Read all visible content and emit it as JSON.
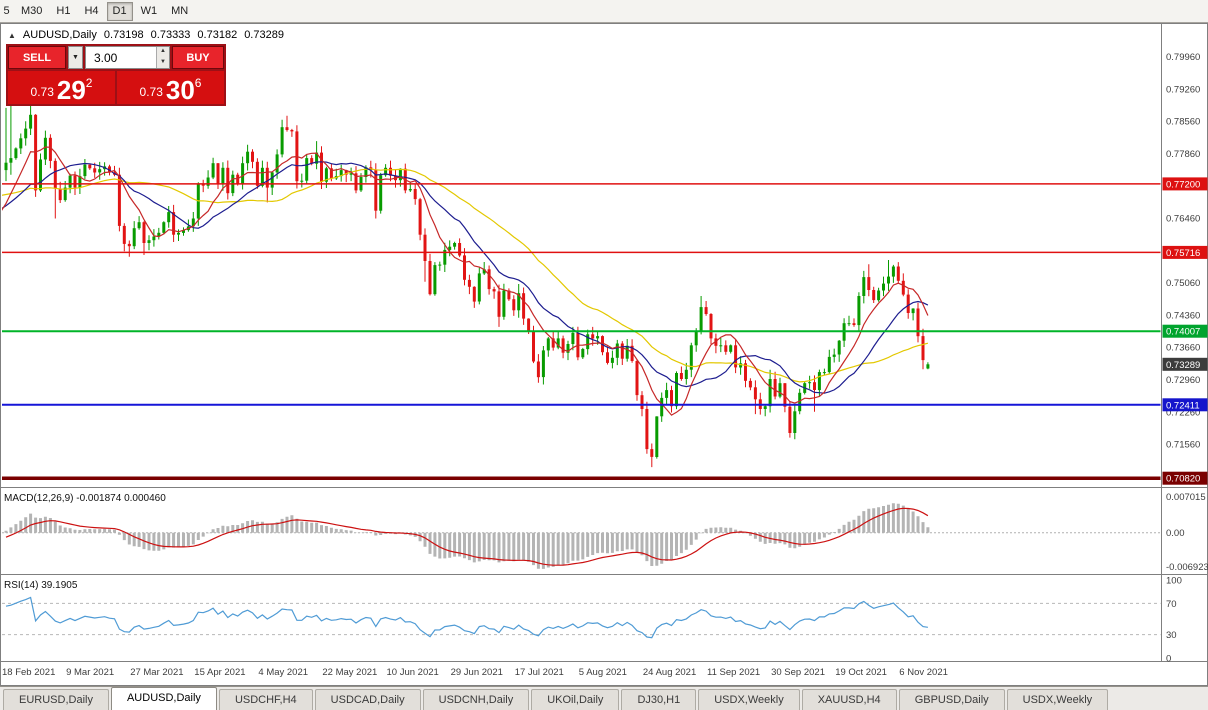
{
  "toolbar": {
    "timeframes": [
      "5",
      "M30",
      "H1",
      "H4",
      "D1",
      "W1",
      "MN"
    ],
    "active_timeframe": "D1"
  },
  "symbol_header": {
    "icon": "▲",
    "symbol": "AUDUSD,Daily",
    "open": "0.73198",
    "high": "0.73333",
    "low": "0.73182",
    "close": "0.73289"
  },
  "trade_panel": {
    "sell_label": "SELL",
    "buy_label": "BUY",
    "volume": "3.00",
    "sell_price": {
      "base": "0.73",
      "pips": "29",
      "point": "2"
    },
    "buy_price": {
      "base": "0.73",
      "pips": "30",
      "point": "6"
    }
  },
  "chart_data": {
    "type": "candlestick",
    "symbol": "AUDUSD",
    "timeframe": "Daily",
    "x_labels": [
      "18 Feb 2021",
      "9 Mar 2021",
      "27 Mar 2021",
      "15 Apr 2021",
      "4 May 2021",
      "22 May 2021",
      "10 Jun 2021",
      "29 Jun 2021",
      "17 Jul 2021",
      "5 Aug 2021",
      "24 Aug 2021",
      "11 Sep 2021",
      "30 Sep 2021",
      "19 Oct 2021",
      "6 Nov 2021"
    ],
    "x_label_days": [
      0,
      13,
      26,
      39,
      52,
      65,
      78,
      91,
      104,
      117,
      130,
      143,
      156,
      169,
      182
    ],
    "warmup": [
      0.77,
      0.7712,
      0.7718,
      0.7725,
      0.7735,
      0.7745,
      0.775,
      0.7758,
      0.777,
      0.7762,
      0.7748,
      0.7735,
      0.772,
      0.7705,
      0.769,
      0.768,
      0.7665,
      0.7645,
      0.7638,
      0.765,
      0.7662,
      0.7675,
      0.7688,
      0.77,
      0.7712,
      0.766,
      0.763,
      0.7605,
      0.7622,
      0.764,
      0.766,
      0.768,
      0.771,
      0.774
    ],
    "closes": [
      0.7766,
      0.7776,
      0.7797,
      0.7819,
      0.784,
      0.787,
      0.7706,
      0.7773,
      0.782,
      0.777,
      0.771,
      0.7685,
      0.7712,
      0.7738,
      0.7712,
      0.7737,
      0.7762,
      0.7754,
      0.7745,
      0.7752,
      0.7758,
      0.7745,
      0.774,
      0.7629,
      0.759,
      0.7585,
      0.7624,
      0.7637,
      0.7592,
      0.7598,
      0.7606,
      0.7614,
      0.7637,
      0.7659,
      0.761,
      0.7614,
      0.762,
      0.7628,
      0.7645,
      0.772,
      0.7716,
      0.7734,
      0.7765,
      0.7721,
      0.7755,
      0.77,
      0.774,
      0.772,
      0.7765,
      0.779,
      0.7768,
      0.7716,
      0.7755,
      0.7712,
      0.7745,
      0.7784,
      0.7843,
      0.7837,
      0.7834,
      0.7726,
      0.7727,
      0.7776,
      0.7764,
      0.7788,
      0.7725,
      0.7754,
      0.7732,
      0.7737,
      0.775,
      0.774,
      0.7743,
      0.7706,
      0.7735,
      0.7756,
      0.775,
      0.7662,
      0.7739,
      0.7755,
      0.7738,
      0.7728,
      0.7753,
      0.7706,
      0.7709,
      0.7687,
      0.761,
      0.7553,
      0.7481,
      0.7544,
      0.7545,
      0.7577,
      0.7584,
      0.7592,
      0.7565,
      0.7512,
      0.7497,
      0.7465,
      0.7526,
      0.7535,
      0.7492,
      0.7487,
      0.7432,
      0.7489,
      0.747,
      0.7446,
      0.7483,
      0.7428,
      0.7401,
      0.7335,
      0.7301,
      0.7359,
      0.7385,
      0.7365,
      0.7385,
      0.7354,
      0.7373,
      0.7397,
      0.7344,
      0.7362,
      0.7394,
      0.7385,
      0.739,
      0.7355,
      0.7332,
      0.7343,
      0.7374,
      0.7341,
      0.7369,
      0.7336,
      0.7262,
      0.7232,
      0.7145,
      0.7128,
      0.7216,
      0.7256,
      0.7273,
      0.7238,
      0.731,
      0.7297,
      0.7317,
      0.737,
      0.74,
      0.7453,
      0.7438,
      0.7385,
      0.7369,
      0.737,
      0.7356,
      0.737,
      0.7322,
      0.7331,
      0.7293,
      0.7279,
      0.7253,
      0.7232,
      0.7238,
      0.7297,
      0.7259,
      0.7288,
      0.7237,
      0.718,
      0.7227,
      0.7267,
      0.7288,
      0.729,
      0.7273,
      0.7312,
      0.7312,
      0.7345,
      0.735,
      0.738,
      0.7418,
      0.7418,
      0.7414,
      0.7477,
      0.7518,
      0.749,
      0.7468,
      0.7489,
      0.7504,
      0.7519,
      0.7541,
      0.751,
      0.748,
      0.744,
      0.745,
      0.739,
      0.7338,
      0.73289
    ],
    "overrides": {
      "0": {
        "o": 0.775,
        "h": 0.7885
      },
      "1": {
        "h": 0.7892,
        "l": 0.774
      },
      "5": {
        "h": 0.789
      },
      "6": {
        "l": 0.7692
      },
      "10": {
        "l": 0.7645
      },
      "25": {
        "l": 0.7562
      },
      "28": {
        "l": 0.7566
      },
      "53": {
        "l": 0.768
      },
      "57": {
        "h": 0.7868
      },
      "63": {
        "h": 0.7813
      },
      "75": {
        "l": 0.7645
      },
      "84": {
        "l": 0.7598
      },
      "85": {
        "l": 0.7508
      },
      "86": {
        "l": 0.7478
      },
      "100": {
        "l": 0.741
      },
      "104": {
        "h": 0.7503
      },
      "108": {
        "l": 0.7289
      },
      "115": {
        "h": 0.741
      },
      "130": {
        "l": 0.7135
      },
      "131": {
        "l": 0.7106
      },
      "141": {
        "h": 0.7477
      },
      "152": {
        "l": 0.7221
      },
      "155": {
        "h": 0.7317
      },
      "159": {
        "l": 0.717
      },
      "164": {
        "l": 0.7226
      },
      "173": {
        "h": 0.7485
      },
      "175": {
        "h": 0.7546
      },
      "179": {
        "h": 0.7555
      },
      "186": {
        "l": 0.7318
      },
      "187": {
        "o": 0.73198,
        "h": 0.73333,
        "l": 0.73182
      }
    },
    "y_axis": {
      "min": 0.7065,
      "max": 0.8056,
      "labels": [
        "0.79960",
        "0.79260",
        "0.78560",
        "0.77860",
        "0.76460",
        "0.75060",
        "0.74360",
        "0.73660",
        "0.72960",
        "0.72260",
        "0.71560"
      ],
      "badges": [
        {
          "price": 0.772,
          "label": "0.77200",
          "color": "#dd1111"
        },
        {
          "price": 0.75716,
          "label": "0.75716",
          "color": "#dd1111"
        },
        {
          "price": 0.74007,
          "label": "0.74007",
          "color": "#00a42e"
        },
        {
          "price": 0.73289,
          "label": "0.73289",
          "color": "#3c3c3c"
        },
        {
          "price": 0.72411,
          "label": "0.72411",
          "color": "#1515cc"
        },
        {
          "price": 0.7082,
          "label": "0.70820",
          "color": "#7a0000"
        }
      ]
    },
    "hlines": [
      {
        "price": 0.772,
        "label": "0.77200",
        "color": "#e01010",
        "width": 1.5
      },
      {
        "price": 0.75716,
        "label": "0.75716",
        "color": "#e01010",
        "width": 1.5
      },
      {
        "price": 0.74007,
        "label": "0.74007",
        "color": "#00b428",
        "width": 2
      },
      {
        "price": 0.72411,
        "label": "0.72411",
        "color": "#1515d8",
        "width": 2
      },
      {
        "price": 0.7082,
        "label": "0.70820",
        "color": "#7a0000",
        "width": 3.5
      }
    ],
    "macd": {
      "label": "MACD(12,26,9)",
      "value": "-0.001874",
      "signal_value": "0.000460",
      "fast": 12,
      "slow": 26,
      "signal": 9,
      "axis": [
        "0.007015",
        "0.00",
        "-0.006923"
      ]
    },
    "rsi": {
      "label": "RSI(14)",
      "value": "39.1905",
      "period": 14,
      "levels": [
        70,
        30
      ],
      "axis": [
        "100",
        "70",
        "30",
        "0"
      ]
    }
  },
  "tabs": {
    "items": [
      {
        "label": "EURUSD,Daily",
        "active": false
      },
      {
        "label": "AUDUSD,Daily",
        "active": true
      },
      {
        "label": "USDCHF,H4",
        "active": false
      },
      {
        "label": "USDCAD,Daily",
        "active": false
      },
      {
        "label": "USDCNH,Daily",
        "active": false
      },
      {
        "label": "UKOil,Daily",
        "active": false
      },
      {
        "label": "DJ30,H1",
        "active": false
      },
      {
        "label": "USDX,Weekly",
        "active": false
      },
      {
        "label": "XAUUSD,H4",
        "active": false
      },
      {
        "label": "GBPUSD,Daily",
        "active": false
      },
      {
        "label": "USDX,Weekly",
        "active": false
      }
    ]
  },
  "colors": {
    "up": "#089b00",
    "down": "#e21414",
    "ma_fast": "#c62828",
    "ma_mid": "#1d1d8f",
    "ma_slow": "#e3c800",
    "macd_hist": "#b4b4b4",
    "macd_signal": "#cc1111",
    "rsi_line": "#4f9bd5",
    "window_border": "#7f7f7f"
  }
}
